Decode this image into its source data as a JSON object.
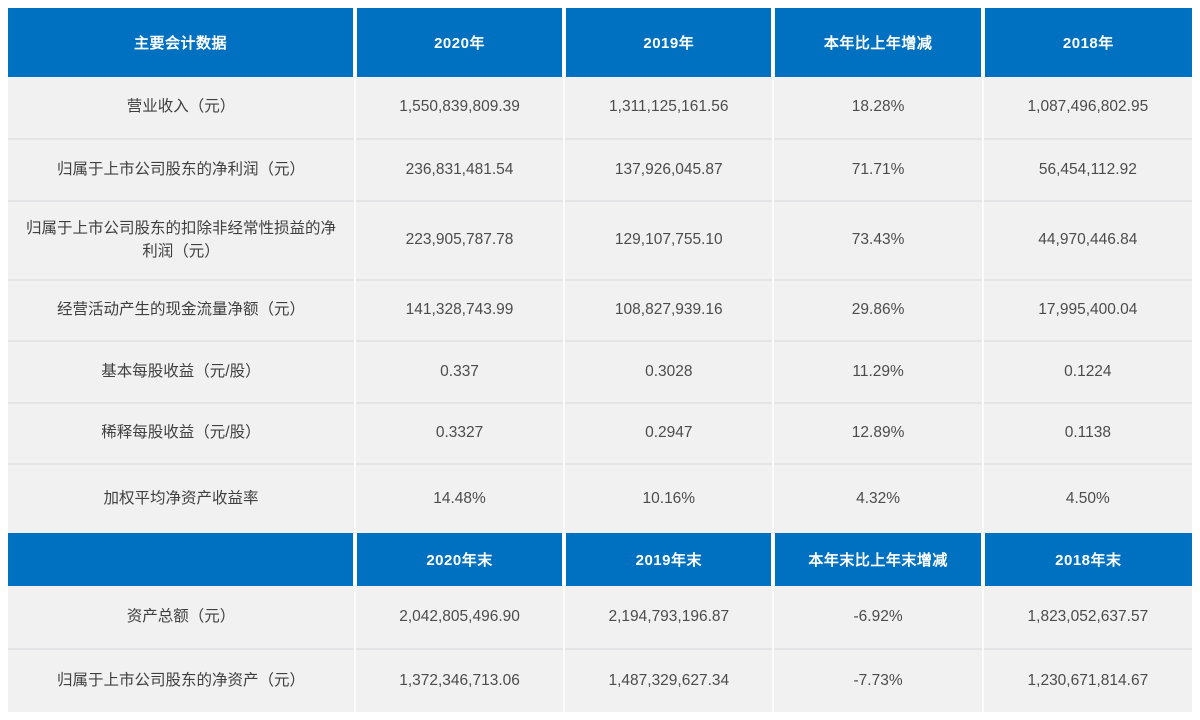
{
  "colors": {
    "header_background": "#0070C0",
    "header_text": "#FFFFFF",
    "row_background": "#F1F1F2",
    "row_separator": "#E5E5E7",
    "value_text": "#4C4C4C"
  },
  "table": {
    "sections": [
      {
        "headers": [
          "主要会计数据",
          "2020年",
          "2019年",
          "本年比上年增减",
          "2018年"
        ],
        "rows": [
          {
            "label": "营业收入（元）",
            "values": [
              "1,550,839,809.39",
              "1,311,125,161.56",
              "18.28%",
              "1,087,496,802.95"
            ]
          },
          {
            "label": "归属于上市公司股东的净利润（元）",
            "values": [
              "236,831,481.54",
              "137,926,045.87",
              "71.71%",
              "56,454,112.92"
            ]
          },
          {
            "label": "归属于上市公司股东的扣除非经常性损益的净利润（元）",
            "values": [
              "223,905,787.78",
              "129,107,755.10",
              "73.43%",
              "44,970,446.84"
            ]
          },
          {
            "label": "经营活动产生的现金流量净额（元）",
            "values": [
              "141,328,743.99",
              "108,827,939.16",
              "29.86%",
              "17,995,400.04"
            ]
          },
          {
            "label": "基本每股收益（元/股）",
            "values": [
              "0.337",
              "0.3028",
              "11.29%",
              "0.1224"
            ]
          },
          {
            "label": "稀释每股收益（元/股）",
            "values": [
              "0.3327",
              "0.2947",
              "12.89%",
              "0.1138"
            ]
          },
          {
            "label": "加权平均净资产收益率",
            "values": [
              "14.48%",
              "10.16%",
              "4.32%",
              "4.50%"
            ]
          }
        ]
      },
      {
        "headers": [
          "",
          "2020年末",
          "2019年末",
          "本年末比上年末增减",
          "2018年末"
        ],
        "rows": [
          {
            "label": "资产总额（元）",
            "values": [
              "2,042,805,496.90",
              "2,194,793,196.87",
              "-6.92%",
              "1,823,052,637.57"
            ]
          },
          {
            "label": "归属于上市公司股东的净资产（元）",
            "values": [
              "1,372,346,713.06",
              "1,487,329,627.34",
              "-7.73%",
              "1,230,671,814.67"
            ]
          }
        ]
      }
    ]
  }
}
